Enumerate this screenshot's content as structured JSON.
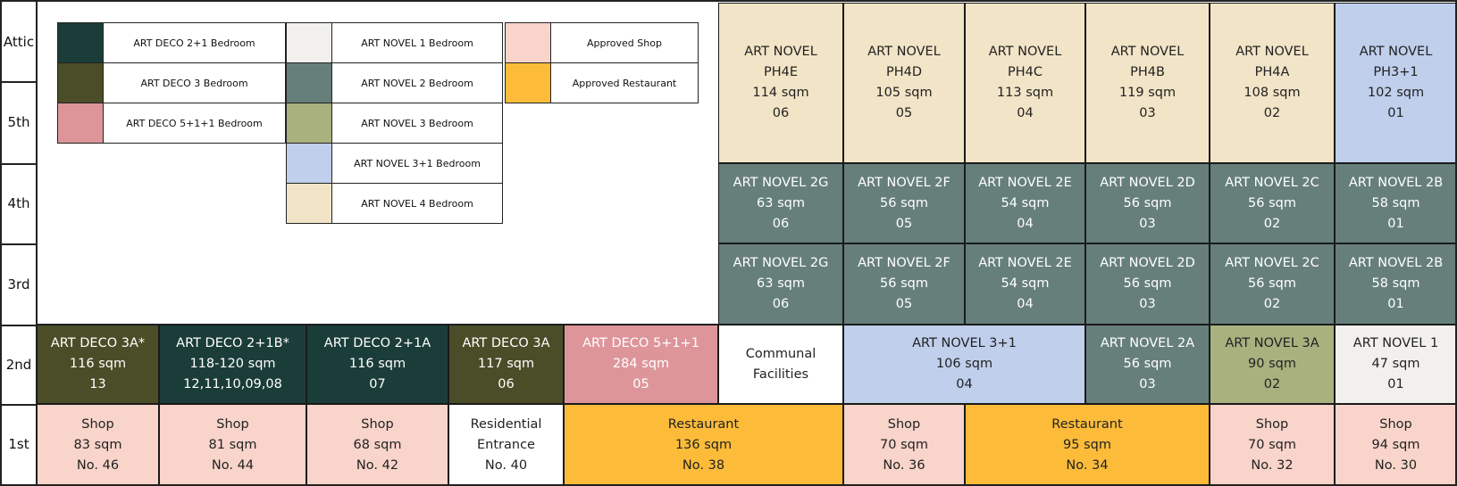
{
  "colors": {
    "deco_2_1": "#1b3d3a",
    "deco_3": "#4a4d27",
    "deco_5_1_1": "#de959a",
    "novel_1": "#f2f0ec",
    "novel_2": "#667f7b",
    "novel_3": "#a9b17f",
    "novel_3_1": "#bfcfec",
    "novel_4": "#f2e4c6",
    "shop": "#f8d4ca",
    "restaurant": "#fcbc3a",
    "white": "#ffffff"
  },
  "floors": [
    "Attic",
    "5th",
    "4th",
    "3rd",
    "2nd",
    "1st"
  ],
  "legend": [
    {
      "label": "ART DECO 2+1 Bedroom",
      "color": "deco_2_1"
    },
    {
      "label": "ART DECO 3 Bedroom",
      "color": "deco_3"
    },
    {
      "label": "ART DECO 5+1+1 Bedroom",
      "color": "deco_5_1_1"
    },
    {
      "label": "ART NOVEL 1 Bedroom",
      "color": "novel_1"
    },
    {
      "label": "ART NOVEL 2 Bedroom",
      "color": "novel_2"
    },
    {
      "label": "ART NOVEL 3 Bedroom",
      "color": "novel_3"
    },
    {
      "label": "ART NOVEL 3+1 Bedroom",
      "color": "novel_3_1"
    },
    {
      "label": "ART NOVEL 4 Bedroom",
      "color": "novel_4"
    },
    {
      "label": "Approved Shop",
      "color": "shop"
    },
    {
      "label": "Approved Restaurant",
      "color": "restaurant"
    }
  ],
  "units": [
    {
      "id": "ph4e",
      "lines": [
        "ART NOVEL",
        "PH4E",
        "114 sqm",
        "06"
      ],
      "color": "novel_4",
      "text": "#222222"
    },
    {
      "id": "ph4d",
      "lines": [
        "ART NOVEL",
        "PH4D",
        "105 sqm",
        "05"
      ],
      "color": "novel_4",
      "text": "#222222"
    },
    {
      "id": "ph4c",
      "lines": [
        "ART NOVEL",
        "PH4C",
        "113 sqm",
        "04"
      ],
      "color": "novel_4",
      "text": "#222222"
    },
    {
      "id": "ph4b",
      "lines": [
        "ART NOVEL",
        "PH4B",
        "119 sqm",
        "03"
      ],
      "color": "novel_4",
      "text": "#222222"
    },
    {
      "id": "ph4a",
      "lines": [
        "ART NOVEL",
        "PH4A",
        "108 sqm",
        "02"
      ],
      "color": "novel_4",
      "text": "#222222"
    },
    {
      "id": "ph3",
      "lines": [
        "ART NOVEL",
        "PH3+1",
        "102 sqm",
        "01"
      ],
      "color": "novel_3_1",
      "text": "#222222"
    },
    {
      "id": "4-2g",
      "lines": [
        "ART NOVEL 2G",
        "63 sqm",
        "06"
      ],
      "color": "novel_2",
      "text": "#ffffff"
    },
    {
      "id": "4-2f",
      "lines": [
        "ART NOVEL 2F",
        "56 sqm",
        "05"
      ],
      "color": "novel_2",
      "text": "#ffffff"
    },
    {
      "id": "4-2e",
      "lines": [
        "ART NOVEL 2E",
        "54 sqm",
        "04"
      ],
      "color": "novel_2",
      "text": "#ffffff"
    },
    {
      "id": "4-2d",
      "lines": [
        "ART NOVEL 2D",
        "56 sqm",
        "03"
      ],
      "color": "novel_2",
      "text": "#ffffff"
    },
    {
      "id": "4-2c",
      "lines": [
        "ART NOVEL 2C",
        "56 sqm",
        "02"
      ],
      "color": "novel_2",
      "text": "#ffffff"
    },
    {
      "id": "4-2b",
      "lines": [
        "ART NOVEL 2B",
        "58 sqm",
        "01"
      ],
      "color": "novel_2",
      "text": "#ffffff"
    },
    {
      "id": "3-2g",
      "lines": [
        "ART NOVEL 2G",
        "63 sqm",
        "06"
      ],
      "color": "novel_2",
      "text": "#ffffff"
    },
    {
      "id": "3-2f",
      "lines": [
        "ART NOVEL 2F",
        "56 sqm",
        "05"
      ],
      "color": "novel_2",
      "text": "#ffffff"
    },
    {
      "id": "3-2e",
      "lines": [
        "ART NOVEL 2E",
        "54 sqm",
        "04"
      ],
      "color": "novel_2",
      "text": "#ffffff"
    },
    {
      "id": "3-2d",
      "lines": [
        "ART NOVEL 2D",
        "56 sqm",
        "03"
      ],
      "color": "novel_2",
      "text": "#ffffff"
    },
    {
      "id": "3-2c",
      "lines": [
        "ART NOVEL 2C",
        "56 sqm",
        "02"
      ],
      "color": "novel_2",
      "text": "#ffffff"
    },
    {
      "id": "3-2b",
      "lines": [
        "ART NOVEL 2B",
        "58 sqm",
        "01"
      ],
      "color": "novel_2",
      "text": "#ffffff"
    },
    {
      "id": "d3a-star",
      "lines": [
        "ART DECO 3A*",
        "116 sqm",
        "13"
      ],
      "color": "deco_3",
      "text": "#ffffff"
    },
    {
      "id": "d21b",
      "lines": [
        "ART DECO 2+1B*",
        "118-120 sqm",
        "12,11,10,09,08"
      ],
      "color": "deco_2_1",
      "text": "#ffffff"
    },
    {
      "id": "d21a",
      "lines": [
        "ART DECO 2+1A",
        "116 sqm",
        "07"
      ],
      "color": "deco_2_1",
      "text": "#ffffff"
    },
    {
      "id": "d3a",
      "lines": [
        "ART DECO 3A",
        "117 sqm",
        "06"
      ],
      "color": "deco_3",
      "text": "#ffffff"
    },
    {
      "id": "d511",
      "lines": [
        "ART DECO 5+1+1",
        "284 sqm",
        "05"
      ],
      "color": "deco_5_1_1",
      "text": "#ffffff"
    },
    {
      "id": "communal",
      "lines": [
        "Communal",
        "Facilities"
      ],
      "color": "white",
      "text": "#222222"
    },
    {
      "id": "n31",
      "lines": [
        "ART NOVEL 3+1",
        "106 sqm",
        "04"
      ],
      "color": "novel_3_1",
      "text": "#222222"
    },
    {
      "id": "n2a",
      "lines": [
        "ART NOVEL 2A",
        "56 sqm",
        "03"
      ],
      "color": "novel_2",
      "text": "#ffffff"
    },
    {
      "id": "n3a",
      "lines": [
        "ART NOVEL 3A",
        "90 sqm",
        "02"
      ],
      "color": "novel_3",
      "text": "#222222"
    },
    {
      "id": "n1",
      "lines": [
        "ART NOVEL 1",
        "47 sqm",
        "01"
      ],
      "color": "novel_1",
      "text": "#222222"
    },
    {
      "id": "s46",
      "lines": [
        "Shop",
        "83 sqm",
        "No. 46"
      ],
      "color": "shop",
      "text": "#222222"
    },
    {
      "id": "s44",
      "lines": [
        "Shop",
        "81 sqm",
        "No. 44"
      ],
      "color": "shop",
      "text": "#222222"
    },
    {
      "id": "s42",
      "lines": [
        "Shop",
        "68 sqm",
        "No. 42"
      ],
      "color": "shop",
      "text": "#222222"
    },
    {
      "id": "res",
      "lines": [
        "Residential",
        "Entrance",
        "No. 40"
      ],
      "color": "white",
      "text": "#222222"
    },
    {
      "id": "r38",
      "lines": [
        "Restaurant",
        "136 sqm",
        "No. 38"
      ],
      "color": "restaurant",
      "text": "#222222"
    },
    {
      "id": "s36",
      "lines": [
        "Shop",
        "70 sqm",
        "No. 36"
      ],
      "color": "shop",
      "text": "#222222"
    },
    {
      "id": "r34",
      "lines": [
        "Restaurant",
        "95 sqm",
        "No. 34"
      ],
      "color": "restaurant",
      "text": "#222222"
    },
    {
      "id": "s32",
      "lines": [
        "Shop",
        "70 sqm",
        "No. 32"
      ],
      "color": "shop",
      "text": "#222222"
    },
    {
      "id": "s30",
      "lines": [
        "Shop",
        "94 sqm",
        "No. 30"
      ],
      "color": "shop",
      "text": "#222222"
    }
  ]
}
